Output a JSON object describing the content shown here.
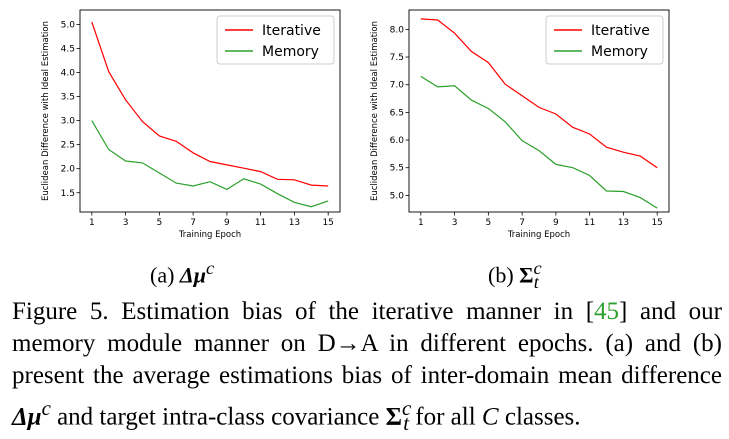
{
  "chart_data": [
    {
      "type": "line",
      "xlabel": "Training Epoch",
      "ylabel": "Euclidean Difference with Ideal Estimation",
      "x": [
        1,
        2,
        3,
        4,
        5,
        6,
        7,
        8,
        9,
        10,
        11,
        12,
        13,
        14,
        15
      ],
      "xticks": [
        1,
        3,
        5,
        7,
        9,
        11,
        13,
        15
      ],
      "xlim": [
        0.3,
        15.7
      ],
      "yticks": [
        1.5,
        2.0,
        2.5,
        3.0,
        3.5,
        4.0,
        4.5,
        5.0
      ],
      "ytick_labels": [
        "1.5",
        "2.0",
        "2.5",
        "3.0",
        "3.5",
        "4.0",
        "4.5",
        "5.0"
      ],
      "ylim": [
        1.1,
        5.3
      ],
      "legend_position": "top-right",
      "series": [
        {
          "name": "Iterative",
          "color": "#ff0000",
          "values": [
            5.05,
            4.02,
            3.43,
            2.98,
            2.68,
            2.57,
            2.33,
            2.15,
            2.08,
            2.01,
            1.94,
            1.78,
            1.77,
            1.66,
            1.64
          ]
        },
        {
          "name": "Memory",
          "color": "#2ca02c",
          "values": [
            3.0,
            2.4,
            2.16,
            2.12,
            1.91,
            1.7,
            1.64,
            1.73,
            1.57,
            1.79,
            1.68,
            1.48,
            1.3,
            1.21,
            1.33
          ]
        }
      ]
    },
    {
      "type": "line",
      "xlabel": "Training Epoch",
      "ylabel": "Euclidean Difference with Ideal Estimation",
      "x": [
        1,
        2,
        3,
        4,
        5,
        6,
        7,
        8,
        9,
        10,
        11,
        12,
        13,
        14,
        15
      ],
      "xticks": [
        1,
        3,
        5,
        7,
        9,
        11,
        13,
        15
      ],
      "xlim": [
        0.3,
        15.7
      ],
      "yticks": [
        5.0,
        5.5,
        6.0,
        6.5,
        7.0,
        7.5,
        8.0
      ],
      "ytick_labels": [
        "5.0",
        "5.5",
        "6.0",
        "6.5",
        "7.0",
        "7.5",
        "8.0"
      ],
      "ylim": [
        4.7,
        8.35
      ],
      "legend_position": "top-right",
      "series": [
        {
          "name": "Iterative",
          "color": "#ff0000",
          "values": [
            8.19,
            8.17,
            7.93,
            7.6,
            7.4,
            7.01,
            6.8,
            6.59,
            6.47,
            6.23,
            6.11,
            5.87,
            5.78,
            5.71,
            5.5
          ]
        },
        {
          "name": "Memory",
          "color": "#2ca02c",
          "values": [
            7.15,
            6.96,
            6.98,
            6.72,
            6.57,
            6.33,
            5.99,
            5.81,
            5.56,
            5.5,
            5.36,
            5.08,
            5.07,
            4.96,
            4.77
          ]
        }
      ]
    }
  ],
  "subcaptions": {
    "a": {
      "prefix": "(a)",
      "symbol": "Δμ",
      "sup": "c"
    },
    "b": {
      "prefix": "(b)",
      "symbol": "Σ",
      "sup": "c",
      "sub": "t"
    }
  },
  "caption": {
    "t1": "Figure 5. Estimation bias of the iterative manner in [",
    "cite": "45",
    "t2": "] and our memory module manner on D→A in different epochs. (a) and (b) present the average estimations bias of inter-domain mean difference ",
    "sym1": "Δμ",
    "sym1_sup": "c",
    "t3": " and target intra-class covariance ",
    "sym2": "Σ",
    "sym2_sup": "c",
    "sym2_sub": "t",
    "t4": " for all ",
    "var": "C",
    "t5": " classes."
  }
}
